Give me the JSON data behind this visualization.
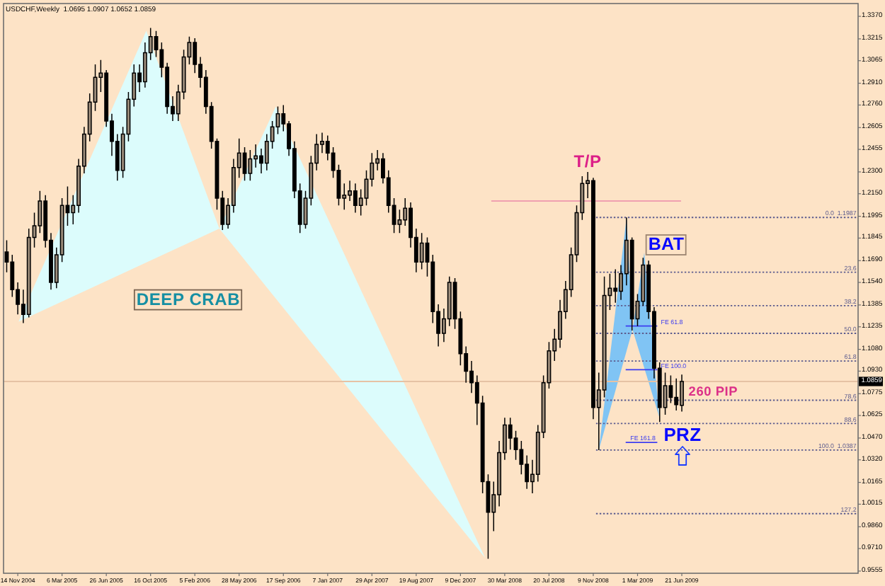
{
  "chart_data": {
    "type": "candlestick",
    "title": "USDCHF,Weekly  1.0695 1.0907 1.0652 1.0859",
    "color": "#000000",
    "x": [
      "2004-10-17",
      "2004-10-31",
      "2004-11-14",
      "2004-11-28",
      "2004-12-12",
      "2004-12-26",
      "2005-01-09",
      "2005-01-23",
      "2005-02-06",
      "2005-02-20",
      "2005-03-06",
      "2005-03-20",
      "2005-04-03",
      "2005-04-17",
      "2005-05-01",
      "2005-05-15",
      "2005-05-29",
      "2005-06-12",
      "2005-06-26",
      "2005-07-10",
      "2005-07-24",
      "2005-08-07",
      "2005-08-21",
      "2005-09-04",
      "2005-09-18",
      "2005-10-02",
      "2005-10-16",
      "2005-10-30",
      "2005-11-13",
      "2005-11-27",
      "2005-12-11",
      "2005-12-25",
      "2006-01-08",
      "2006-01-22",
      "2006-02-05",
      "2006-02-19",
      "2006-03-05",
      "2006-03-19",
      "2006-04-02",
      "2006-04-16",
      "2006-04-30",
      "2006-05-14",
      "2006-05-28",
      "2006-06-11",
      "2006-06-25",
      "2006-07-09",
      "2006-07-23",
      "2006-08-06",
      "2006-08-20",
      "2006-09-03",
      "2006-09-17",
      "2006-10-01",
      "2006-10-15",
      "2006-10-29",
      "2006-11-12",
      "2006-11-26",
      "2006-12-10",
      "2006-12-24",
      "2007-01-07",
      "2007-01-21",
      "2007-02-04",
      "2007-02-18",
      "2007-03-04",
      "2007-03-18",
      "2007-04-01",
      "2007-04-15",
      "2007-04-29",
      "2007-05-13",
      "2007-05-27",
      "2007-06-10",
      "2007-06-24",
      "2007-07-08",
      "2007-07-22",
      "2007-08-05",
      "2007-08-19",
      "2007-09-02",
      "2007-09-16",
      "2007-09-30",
      "2007-10-14",
      "2007-10-28",
      "2007-11-11",
      "2007-11-25",
      "2007-12-09",
      "2007-12-23",
      "2008-01-06",
      "2008-01-20",
      "2008-02-03",
      "2008-02-17",
      "2008-03-02",
      "2008-03-16",
      "2008-03-30",
      "2008-04-13",
      "2008-04-27",
      "2008-05-11",
      "2008-05-25",
      "2008-06-08",
      "2008-06-22",
      "2008-07-06",
      "2008-07-20",
      "2008-08-03",
      "2008-08-17",
      "2008-08-31",
      "2008-09-14",
      "2008-09-28",
      "2008-10-12",
      "2008-10-26",
      "2008-11-09",
      "2008-11-23",
      "2008-12-07",
      "2008-12-21",
      "2009-01-04",
      "2009-01-18",
      "2009-02-01",
      "2009-02-15",
      "2009-03-01",
      "2009-03-15",
      "2009-03-29",
      "2009-04-12",
      "2009-04-26",
      "2009-05-10",
      "2009-05-24",
      "2009-06-07",
      "2009-06-21"
    ],
    "ohlc": [
      [
        1.175,
        1.183,
        1.161,
        1.168
      ],
      [
        1.168,
        1.173,
        1.144,
        1.149
      ],
      [
        1.149,
        1.154,
        1.132,
        1.139
      ],
      [
        1.139,
        1.149,
        1.126,
        1.132
      ],
      [
        1.132,
        1.191,
        1.13,
        1.185
      ],
      [
        1.185,
        1.202,
        1.178,
        1.193
      ],
      [
        1.193,
        1.217,
        1.188,
        1.21
      ],
      [
        1.21,
        1.214,
        1.178,
        1.183
      ],
      [
        1.183,
        1.188,
        1.149,
        1.154
      ],
      [
        1.154,
        1.178,
        1.15,
        1.173
      ],
      [
        1.173,
        1.212,
        1.168,
        1.207
      ],
      [
        1.207,
        1.22,
        1.193,
        1.202
      ],
      [
        1.202,
        1.214,
        1.194,
        1.207
      ],
      [
        1.207,
        1.239,
        1.202,
        1.234
      ],
      [
        1.234,
        1.261,
        1.229,
        1.256
      ],
      [
        1.256,
        1.284,
        1.251,
        1.278
      ],
      [
        1.278,
        1.304,
        1.272,
        1.295
      ],
      [
        1.295,
        1.307,
        1.285,
        1.298
      ],
      [
        1.298,
        1.3,
        1.261,
        1.265
      ],
      [
        1.265,
        1.27,
        1.241,
        1.251
      ],
      [
        1.251,
        1.256,
        1.224,
        1.231
      ],
      [
        1.231,
        1.261,
        1.226,
        1.256
      ],
      [
        1.256,
        1.285,
        1.251,
        1.28
      ],
      [
        1.28,
        1.304,
        1.275,
        1.298
      ],
      [
        1.298,
        1.304,
        1.285,
        1.292
      ],
      [
        1.292,
        1.319,
        1.288,
        1.312
      ],
      [
        1.312,
        1.329,
        1.307,
        1.323
      ],
      [
        1.323,
        1.327,
        1.309,
        1.314
      ],
      [
        1.314,
        1.319,
        1.295,
        1.302
      ],
      [
        1.302,
        1.305,
        1.27,
        1.275
      ],
      [
        1.275,
        1.282,
        1.265,
        1.27
      ],
      [
        1.27,
        1.29,
        1.265,
        1.285
      ],
      [
        1.285,
        1.314,
        1.28,
        1.309
      ],
      [
        1.309,
        1.323,
        1.304,
        1.319
      ],
      [
        1.319,
        1.322,
        1.298,
        1.304
      ],
      [
        1.304,
        1.309,
        1.288,
        1.295
      ],
      [
        1.295,
        1.3,
        1.27,
        1.275
      ],
      [
        1.275,
        1.278,
        1.246,
        1.251
      ],
      [
        1.251,
        1.253,
        1.204,
        1.212
      ],
      [
        1.212,
        1.217,
        1.19,
        1.194
      ],
      [
        1.194,
        1.212,
        1.191,
        1.207
      ],
      [
        1.207,
        1.239,
        1.202,
        1.233
      ],
      [
        1.233,
        1.253,
        1.226,
        1.243
      ],
      [
        1.243,
        1.247,
        1.224,
        1.229
      ],
      [
        1.229,
        1.245,
        1.224,
        1.239
      ],
      [
        1.239,
        1.249,
        1.233,
        1.241
      ],
      [
        1.241,
        1.246,
        1.229,
        1.236
      ],
      [
        1.236,
        1.256,
        1.231,
        1.251
      ],
      [
        1.251,
        1.265,
        1.246,
        1.261
      ],
      [
        1.261,
        1.275,
        1.256,
        1.27
      ],
      [
        1.27,
        1.276,
        1.258,
        1.263
      ],
      [
        1.263,
        1.265,
        1.241,
        1.246
      ],
      [
        1.246,
        1.251,
        1.212,
        1.217
      ],
      [
        1.217,
        1.222,
        1.188,
        1.194
      ],
      [
        1.194,
        1.217,
        1.191,
        1.212
      ],
      [
        1.212,
        1.241,
        1.207,
        1.236
      ],
      [
        1.236,
        1.256,
        1.231,
        1.249
      ],
      [
        1.249,
        1.257,
        1.243,
        1.251
      ],
      [
        1.251,
        1.255,
        1.238,
        1.243
      ],
      [
        1.243,
        1.247,
        1.226,
        1.231
      ],
      [
        1.231,
        1.235,
        1.207,
        1.212
      ],
      [
        1.212,
        1.222,
        1.204,
        1.214
      ],
      [
        1.214,
        1.224,
        1.21,
        1.217
      ],
      [
        1.217,
        1.222,
        1.202,
        1.207
      ],
      [
        1.207,
        1.218,
        1.2,
        1.212
      ],
      [
        1.212,
        1.231,
        1.207,
        1.225
      ],
      [
        1.225,
        1.243,
        1.22,
        1.236
      ],
      [
        1.236,
        1.245,
        1.231,
        1.239
      ],
      [
        1.239,
        1.243,
        1.222,
        1.226
      ],
      [
        1.226,
        1.231,
        1.202,
        1.207
      ],
      [
        1.207,
        1.212,
        1.188,
        1.194
      ],
      [
        1.194,
        1.204,
        1.188,
        1.197
      ],
      [
        1.197,
        1.212,
        1.193,
        1.205
      ],
      [
        1.205,
        1.209,
        1.178,
        1.185
      ],
      [
        1.185,
        1.191,
        1.161,
        1.168
      ],
      [
        1.168,
        1.188,
        1.163,
        1.181
      ],
      [
        1.181,
        1.185,
        1.158,
        1.168
      ],
      [
        1.168,
        1.173,
        1.126,
        1.134
      ],
      [
        1.134,
        1.139,
        1.11,
        1.119
      ],
      [
        1.119,
        1.136,
        1.113,
        1.129
      ],
      [
        1.129,
        1.158,
        1.124,
        1.154
      ],
      [
        1.154,
        1.157,
        1.122,
        1.129
      ],
      [
        1.129,
        1.134,
        1.097,
        1.105
      ],
      [
        1.105,
        1.11,
        1.085,
        1.093
      ],
      [
        1.093,
        1.1,
        1.078,
        1.085
      ],
      [
        1.085,
        1.09,
        1.056,
        1.071
      ],
      [
        1.071,
        1.076,
        1.009,
        1.017
      ],
      [
        1.017,
        1.022,
        0.964,
        0.996
      ],
      [
        0.996,
        1.017,
        0.983,
        1.008
      ],
      [
        1.008,
        1.045,
        1.0,
        1.037
      ],
      [
        1.037,
        1.061,
        1.032,
        1.056
      ],
      [
        1.056,
        1.061,
        1.039,
        1.047
      ],
      [
        1.047,
        1.052,
        1.032,
        1.039
      ],
      [
        1.039,
        1.045,
        1.022,
        1.029
      ],
      [
        1.029,
        1.035,
        1.012,
        1.017
      ],
      [
        1.017,
        1.032,
        1.009,
        1.022
      ],
      [
        1.022,
        1.056,
        1.017,
        1.051
      ],
      [
        1.051,
        1.09,
        1.047,
        1.085
      ],
      [
        1.085,
        1.113,
        1.081,
        1.107
      ],
      [
        1.107,
        1.122,
        1.1,
        1.115
      ],
      [
        1.115,
        1.142,
        1.109,
        1.134
      ],
      [
        1.134,
        1.155,
        1.129,
        1.149
      ],
      [
        1.149,
        1.178,
        1.144,
        1.173
      ],
      [
        1.173,
        1.207,
        1.168,
        1.202
      ],
      [
        1.202,
        1.227,
        1.197,
        1.222
      ],
      [
        1.222,
        1.23,
        1.212,
        1.224
      ],
      [
        1.224,
        1.226,
        1.06,
        1.068
      ],
      [
        1.068,
        1.092,
        1.0387,
        1.08
      ],
      [
        1.08,
        1.158,
        1.075,
        1.145
      ],
      [
        1.145,
        1.16,
        1.135,
        1.15
      ],
      [
        1.15,
        1.163,
        1.14,
        1.148
      ],
      [
        1.148,
        1.166,
        1.142,
        1.16
      ],
      [
        1.16,
        1.1987,
        1.152,
        1.183
      ],
      [
        1.183,
        1.185,
        1.121,
        1.129
      ],
      [
        1.129,
        1.146,
        1.124,
        1.141
      ],
      [
        1.141,
        1.171,
        1.138,
        1.166
      ],
      [
        1.166,
        1.169,
        1.129,
        1.134
      ],
      [
        1.134,
        1.137,
        1.088,
        1.095
      ],
      [
        1.095,
        1.099,
        1.058,
        1.068
      ],
      [
        1.068,
        1.092,
        1.063,
        1.083
      ],
      [
        1.083,
        1.09,
        1.071,
        1.075
      ],
      [
        1.075,
        1.088,
        1.066,
        1.07
      ],
      [
        1.0695,
        1.0907,
        1.0652,
        1.0859
      ]
    ],
    "xlim": [
      "2004-10-09",
      "2010-09-10"
    ],
    "ylim": [
      0.954,
      1.3458
    ],
    "xticks": [
      {
        "value": "2004-11-14",
        "label": "14 Nov 2004"
      },
      {
        "value": "2005-03-06",
        "label": "6 Mar 2005"
      },
      {
        "value": "2005-06-26",
        "label": "26 Jun 2005"
      },
      {
        "value": "2005-10-16",
        "label": "16 Oct 2005"
      },
      {
        "value": "2006-02-05",
        "label": "5 Feb 2006"
      },
      {
        "value": "2006-05-28",
        "label": "28 May 2006"
      },
      {
        "value": "2006-09-17",
        "label": "17 Sep 2006"
      },
      {
        "value": "2007-01-07",
        "label": "7 Jan 2007"
      },
      {
        "value": "2007-04-29",
        "label": "29 Apr 2007"
      },
      {
        "value": "2007-08-19",
        "label": "19 Aug 2007"
      },
      {
        "value": "2007-12-09",
        "label": "9 Dec 2007"
      },
      {
        "value": "2008-03-30",
        "label": "30 Mar 2008"
      },
      {
        "value": "2008-07-20",
        "label": "20 Jul 2008"
      },
      {
        "value": "2008-11-09",
        "label": "9 Nov 2008"
      },
      {
        "value": "2009-03-01",
        "label": "1 Mar 2009"
      },
      {
        "value": "2009-06-21",
        "label": "21 Jun 2009"
      }
    ],
    "yticks": [
      {
        "value": 1.337,
        "label": "1.3370"
      },
      1.3215,
      1.3065,
      {
        "value": 1.291,
        "label": "1.2910"
      },
      {
        "value": 1.276,
        "label": "1.2760"
      },
      1.2605,
      1.2455,
      {
        "value": 1.23,
        "label": "1.2300"
      },
      {
        "value": 1.215,
        "label": "1.2150"
      },
      1.1995,
      1.1845,
      {
        "value": 1.169,
        "label": "1.1690"
      },
      {
        "value": 1.154,
        "label": "1.1540"
      },
      1.1385,
      1.1235,
      {
        "value": 1.108,
        "label": "1.1080"
      },
      {
        "value": 1.093,
        "label": "1.0930"
      },
      1.0775,
      1.0625,
      {
        "value": 1.047,
        "label": "1.0470"
      },
      {
        "value": 1.032,
        "label": "1.0320"
      },
      1.0165,
      1.0015,
      {
        "value": 0.986,
        "label": "0.9860"
      },
      {
        "value": 0.971,
        "label": "0.9710"
      },
      0.9555
    ],
    "ref_lines": [
      {
        "axis": "y",
        "value": 1.0859,
        "label": "1.0859",
        "color": "#e6c2a4"
      }
    ],
    "series": [
      {
        "type": "line",
        "x": [
          "2008-02-25",
          "2009-06-19"
        ],
        "values": [
          1.21,
          1.21
        ],
        "color": "#f0a0b0"
      },
      {
        "type": "line",
        "name": "0.0  1.1987",
        "x": [
          "2008-11-16",
          "2010-09-10"
        ],
        "values": [
          1.1987,
          1.1987
        ],
        "color": "#5c5c8e",
        "line_style": "dotted"
      },
      {
        "type": "line",
        "name": "23.6",
        "x": [
          "2008-11-16",
          "2010-09-10"
        ],
        "values": [
          1.161,
          1.161
        ],
        "color": "#5c5c8e",
        "line_style": "dotted"
      },
      {
        "type": "line",
        "name": "38.2",
        "x": [
          "2008-11-16",
          "2010-09-10"
        ],
        "values": [
          1.138,
          1.138
        ],
        "color": "#5c5c8e",
        "line_style": "dotted"
      },
      {
        "type": "line",
        "name": "50.0",
        "x": [
          "2008-11-16",
          "2010-09-10"
        ],
        "values": [
          1.119,
          1.119
        ],
        "color": "#5c5c8e",
        "line_style": "dotted"
      },
      {
        "type": "line",
        "name": "61.8",
        "x": [
          "2008-11-16",
          "2010-09-10"
        ],
        "values": [
          1.1,
          1.1
        ],
        "color": "#5c5c8e",
        "line_style": "dotted"
      },
      {
        "type": "line",
        "name": "78.6",
        "x": [
          "2008-11-16",
          "2010-09-10"
        ],
        "values": [
          1.073,
          1.073
        ],
        "color": "#5c5c8e",
        "line_style": "dotted"
      },
      {
        "type": "line",
        "name": "88.6",
        "x": [
          "2008-11-16",
          "2010-09-10"
        ],
        "values": [
          1.057,
          1.057
        ],
        "color": "#5c5c8e",
        "line_style": "dotted"
      },
      {
        "type": "line",
        "name": "100.0  1.0387",
        "x": [
          "2008-11-16",
          "2010-09-10"
        ],
        "values": [
          1.0387,
          1.0387
        ],
        "color": "#5c5c8e",
        "line_style": "dotted"
      },
      {
        "type": "line",
        "name": "127.2",
        "x": [
          "2008-11-16",
          "2010-09-10"
        ],
        "values": [
          0.995,
          0.995
        ],
        "color": "#5c5c8e",
        "line_style": "dotted"
      },
      {
        "type": "line",
        "name": "FE 61.8",
        "x": [
          "2009-01-30",
          "2009-04-20"
        ],
        "values": [
          1.124,
          1.124
        ],
        "color": "#3c3cf0"
      },
      {
        "type": "line",
        "name": "FE 100.0",
        "x": [
          "2009-01-30",
          "2009-04-20"
        ],
        "values": [
          1.094,
          1.094
        ],
        "color": "#3c3cf0"
      },
      {
        "type": "line",
        "name": "FE 161.8",
        "x": [
          "2009-01-30",
          "2009-04-20"
        ],
        "values": [
          1.044,
          1.044
        ],
        "color": "#3c3cf0"
      }
    ],
    "annotations": [
      "T/P",
      "BAT",
      "DEEP CRAB",
      "260 PIP",
      "PRZ"
    ]
  }
}
